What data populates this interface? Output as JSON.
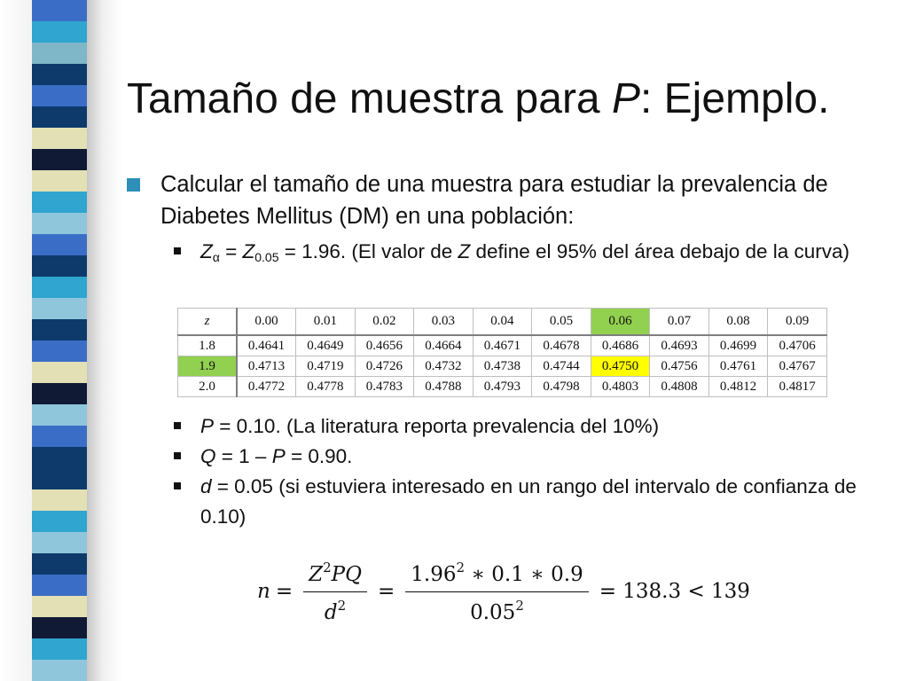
{
  "stripe_colors": [
    "#3a6ec6",
    "#2fa5cf",
    "#7fb6c8",
    "#0e3a6b",
    "#3a6ec6",
    "#0e3a6b",
    "#e2e0b4",
    "#101a35",
    "#e2e0b4",
    "#2fa5cf",
    "#8fc6dc",
    "#3a6ec6",
    "#0e3a6b",
    "#2fa5cf",
    "#8fc6dc",
    "#0e3a6b",
    "#3a6ec6",
    "#e2e0b4",
    "#101a35",
    "#8fc6dc",
    "#3a6ec6",
    "#0e3a6b",
    "#0e3a6b",
    "#e2e0b4",
    "#2fa5cf",
    "#8fc6dc",
    "#0e3a6b",
    "#3a6ec6",
    "#e2e0b4",
    "#101a35",
    "#2fa5cf",
    "#8fc6dc"
  ],
  "title": {
    "prefix": "Tamaño de muestra para ",
    "italic": "P",
    "suffix": ": Ejemplo."
  },
  "bullet_main": "Calcular el tamaño de una muestra para estudiar la prevalencia de Diabetes Mellitus (DM) en una población:",
  "sub1": {
    "z1": "Z",
    "alpha": "α",
    "eq1": " = ",
    "z2": "Z",
    "sub005": "0.05",
    "rest1": " = 1.96. (El valor de ",
    "zit": "Z",
    "rest2": " define el 95% del área debajo de la curva)"
  },
  "table": {
    "header": [
      "z",
      "0.00",
      "0.01",
      "0.02",
      "0.03",
      "0.04",
      "0.05",
      "0.06",
      "0.07",
      "0.08",
      "0.09"
    ],
    "rows": [
      [
        "1.8",
        "0.4641",
        "0.4649",
        "0.4656",
        "0.4664",
        "0.4671",
        "0.4678",
        "0.4686",
        "0.4693",
        "0.4699",
        "0.4706"
      ],
      [
        "1.9",
        "0.4713",
        "0.4719",
        "0.4726",
        "0.4732",
        "0.4738",
        "0.4744",
        "0.4750",
        "0.4756",
        "0.4761",
        "0.4767"
      ],
      [
        "2.0",
        "0.4772",
        "0.4778",
        "0.4783",
        "0.4788",
        "0.4793",
        "0.4798",
        "0.4803",
        "0.4808",
        "0.4812",
        "0.4817"
      ]
    ],
    "highlight_col_color": "#92d050",
    "highlight_row_color": "#92d050",
    "highlight_cell_color": "#ffff00"
  },
  "sub2": {
    "var": "P",
    "text": " = 0.10. (La literatura reporta prevalencia del 10%)"
  },
  "sub3": {
    "var": "Q",
    "mid": " = 1 – ",
    "var2": "P",
    "text": " = 0.90."
  },
  "sub4": {
    "var": "d",
    "text": " = 0.05 (si estuviera interesado en un rango del intervalo de confianza de 0.10)"
  },
  "formula": {
    "n": "n",
    "eq": "=",
    "z": "Z",
    "exp2": "2",
    "pq": "PQ",
    "d": "d",
    "num2": "1.96",
    "times1": " ∗ 0.1 ∗ 0.9",
    "den2": "0.05",
    "result": "= 138.3 < 139"
  }
}
